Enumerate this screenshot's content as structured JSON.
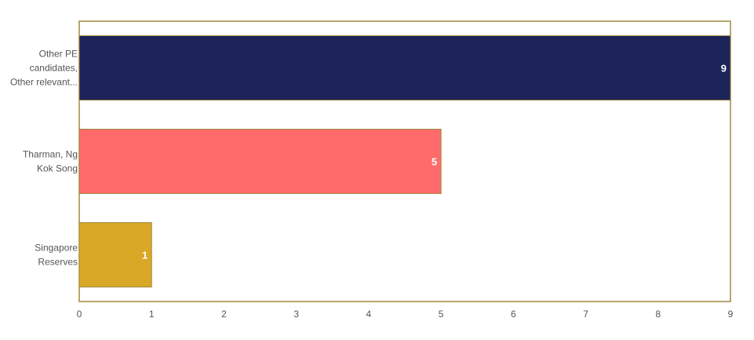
{
  "chart_data": {
    "type": "bar",
    "orientation": "horizontal",
    "categories": [
      [
        "Other PE",
        "candidates,",
        "Other relevant..."
      ],
      [
        "Tharman, Ng",
        "Kok Song"
      ],
      [
        "Singapore",
        "Reserves"
      ]
    ],
    "values": [
      9,
      5,
      1
    ],
    "value_labels": [
      "9",
      "5",
      "1"
    ],
    "colors": [
      "#1c2459",
      "#ff6b6b",
      "#d9a826"
    ],
    "xlim": [
      0,
      9
    ],
    "xticks": [
      0,
      1,
      2,
      3,
      4,
      5,
      6,
      7,
      8,
      9
    ],
    "grid": false,
    "legend": "none",
    "frame_color": "#a08a3c"
  }
}
